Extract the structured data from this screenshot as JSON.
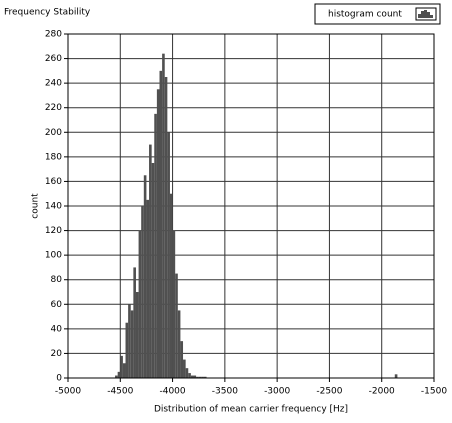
{
  "chart_data": {
    "type": "histogram",
    "title": "Frequency Stability",
    "x_label": "Distribution of  mean carrier frequency [Hz]",
    "y_label": "count",
    "legend": [
      "histogram count"
    ],
    "legend_position": "upper right",
    "color": "#505050",
    "grid": true,
    "bins": [
      -4550,
      -4525,
      -4500,
      -4475,
      -4450,
      -4425,
      -4400,
      -4375,
      -4350,
      -4325,
      -4300,
      -4275,
      -4250,
      -4225,
      -4200,
      -4175,
      -4150,
      -4125,
      -4100,
      -4075,
      -4050,
      -4025,
      -4000,
      -3975,
      -3950,
      -3925,
      -3900,
      -3875,
      -3850,
      -3825,
      -3800,
      -3775,
      -3750,
      -3725,
      -3700,
      -3675,
      -1875,
      -1850
    ],
    "counts": [
      2,
      5,
      18,
      12,
      45,
      60,
      55,
      90,
      70,
      120,
      140,
      165,
      145,
      190,
      175,
      215,
      235,
      250,
      264,
      245,
      200,
      150,
      120,
      85,
      55,
      30,
      15,
      8,
      4,
      2,
      2,
      1,
      1,
      1,
      1,
      0,
      3
    ],
    "xlim": [
      -5000,
      -1500
    ],
    "xticks": [
      -5000,
      -4500,
      -4000,
      -3500,
      -3000,
      -2500,
      -2000,
      -1500
    ],
    "ylim": [
      0,
      280
    ],
    "yticks": [
      0,
      20,
      40,
      60,
      80,
      100,
      120,
      140,
      160,
      180,
      200,
      220,
      240,
      260,
      280
    ]
  }
}
